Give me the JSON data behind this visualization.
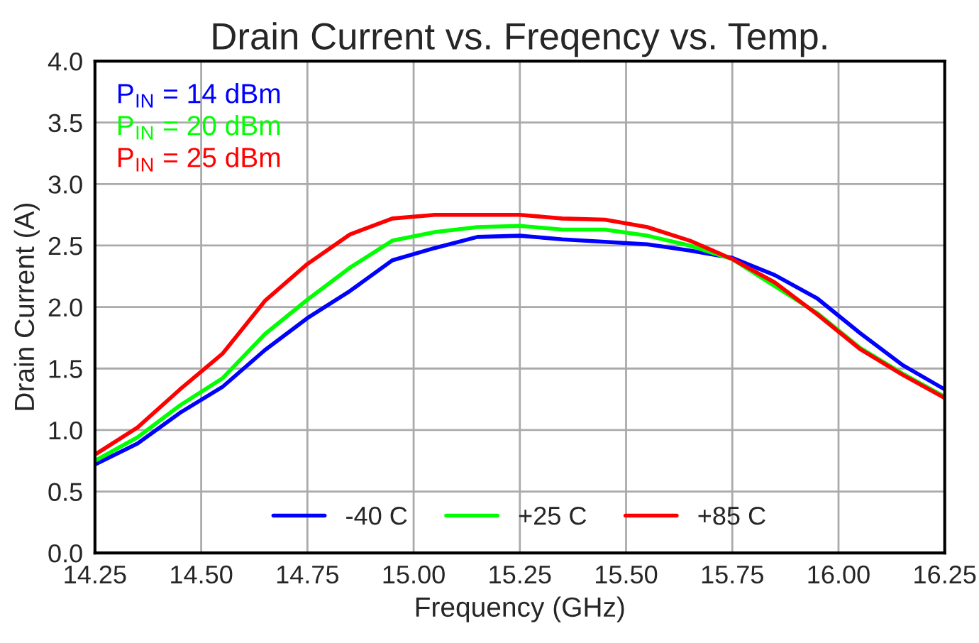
{
  "chart_data": {
    "type": "line",
    "title": "Drain Current vs. Freqency vs. Temp.",
    "xlabel": "Frequency (GHz)",
    "ylabel": "Drain Current (A)",
    "x": [
      14.25,
      14.35,
      14.45,
      14.55,
      14.65,
      14.75,
      14.85,
      14.95,
      15.05,
      15.15,
      15.25,
      15.35,
      15.45,
      15.55,
      15.65,
      15.75,
      15.85,
      15.95,
      16.05,
      16.15,
      16.25
    ],
    "series": [
      {
        "name": "-40 C",
        "color": "#0000ff",
        "values": [
          0.72,
          0.89,
          1.14,
          1.35,
          1.65,
          1.91,
          2.13,
          2.38,
          2.48,
          2.57,
          2.58,
          2.55,
          2.53,
          2.51,
          2.46,
          2.4,
          2.26,
          2.07,
          1.79,
          1.53,
          1.33
        ]
      },
      {
        "name": "+25 C",
        "color": "#00ff00",
        "values": [
          0.75,
          0.94,
          1.2,
          1.42,
          1.78,
          2.06,
          2.32,
          2.54,
          2.61,
          2.65,
          2.66,
          2.63,
          2.63,
          2.58,
          2.5,
          2.39,
          null,
          1.95,
          1.67,
          1.46,
          1.27
        ]
      },
      {
        "name": "+85 C",
        "color": "#ff0000",
        "values": [
          0.8,
          1.02,
          1.33,
          1.62,
          2.05,
          2.35,
          2.59,
          2.72,
          2.75,
          2.75,
          2.75,
          2.72,
          2.71,
          2.65,
          2.54,
          2.39,
          2.2,
          1.94,
          1.66,
          1.45,
          1.26
        ]
      }
    ],
    "annotations": [
      "P$_{IN}$ = 14 dBm",
      "P$_{IN}$ = 20 dBm",
      "P$_{IN}$ = 25 dBm"
    ],
    "xlim": [
      14.25,
      16.25
    ],
    "xticks": [
      {
        "value": 14.25,
        "label": "14.25"
      },
      {
        "value": 14.5,
        "label": "14.50"
      },
      {
        "value": 14.75,
        "label": "14.75"
      },
      {
        "value": 15.0,
        "label": "15.00"
      },
      {
        "value": 15.25,
        "label": "15.25"
      },
      {
        "value": 15.5,
        "label": "15.50"
      },
      {
        "value": 15.75,
        "label": "15.75"
      },
      {
        "value": 16.0,
        "label": "16.00"
      },
      {
        "value": 16.25,
        "label": "16.25"
      }
    ],
    "ylim": [
      0,
      4
    ],
    "yticks": [
      {
        "value": 0,
        "label": "0.0"
      },
      {
        "value": 0.5,
        "label": "0.5"
      },
      {
        "value": 1,
        "label": "1.0"
      },
      {
        "value": 1.5,
        "label": "1.5"
      },
      {
        "value": 2,
        "label": "2.0"
      },
      {
        "value": 2.5,
        "label": "2.5"
      },
      {
        "value": 3,
        "label": "3.0"
      },
      {
        "value": 3.5,
        "label": "3.5"
      },
      {
        "value": 4,
        "label": "4.0"
      }
    ],
    "grid": true,
    "legend": "bottom",
    "marker": "none",
    "line_style": "solid"
  }
}
